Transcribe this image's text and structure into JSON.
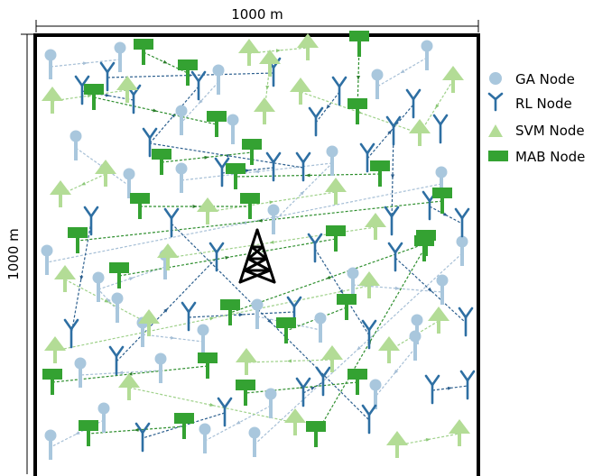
{
  "dimensions": {
    "width_label": "1000 m",
    "height_label": "1000 m"
  },
  "legend": [
    {
      "key": "ga",
      "label": "GA Node",
      "icon": "circle-node-icon"
    },
    {
      "key": "rl",
      "label": "RL Node",
      "icon": "antenna-node-icon"
    },
    {
      "key": "svm",
      "label": "SVM Node",
      "icon": "triangle-node-icon"
    },
    {
      "key": "mab",
      "label": "MAB Node",
      "icon": "rectangle-node-icon"
    }
  ],
  "center_icon": "transmission-tower-icon",
  "colors": {
    "ga": "#a9c7dd",
    "rl": "#2e6fa3",
    "svm": "#b3dc96",
    "mab": "#34a232",
    "link_ga": "#a6bfd6",
    "link_rl": "#3a6d9c",
    "link_svm": "#9fd18a",
    "link_mab": "#2f8f2f",
    "border": "#000000",
    "tower": "#000000"
  }
}
